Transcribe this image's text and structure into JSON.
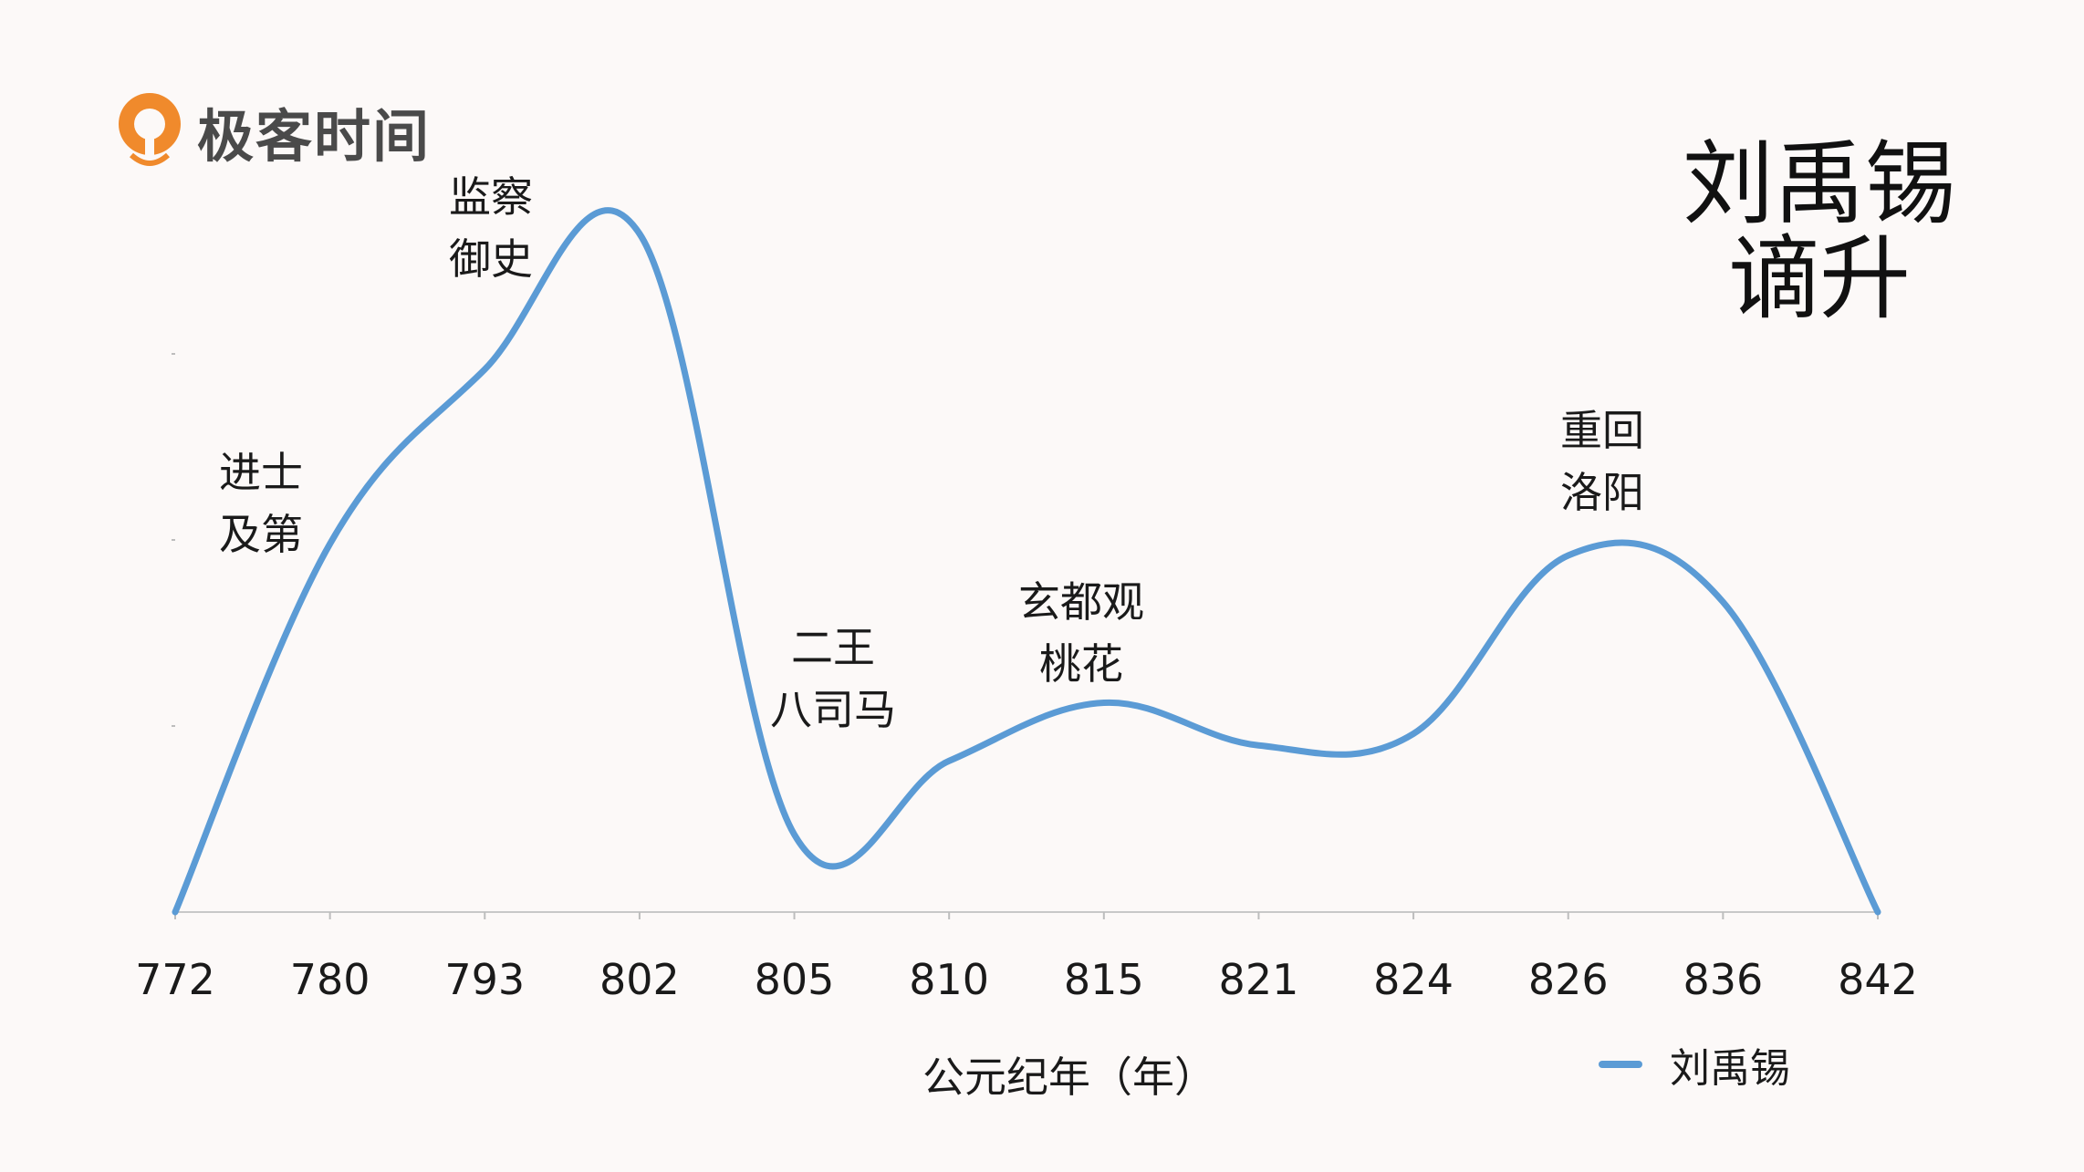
{
  "logo": {
    "text": "极客时间",
    "brand_color": "#f08a2c"
  },
  "title_lines": [
    "刘禹锡",
    "谪升"
  ],
  "annotations": [
    {
      "line1": "进士",
      "line2": "及第"
    },
    {
      "line1": "监察",
      "line2": "御史"
    },
    {
      "line1": "二王",
      "line2": "八司马"
    },
    {
      "line1": "玄都观",
      "line2": "桃花"
    },
    {
      "line1": "重回",
      "line2": "洛阳"
    }
  ],
  "chart_data": {
    "type": "line",
    "categories": [
      "772",
      "780",
      "793",
      "802",
      "805",
      "810",
      "815",
      "821",
      "824",
      "826",
      "836",
      "842"
    ],
    "series": [
      {
        "name": "刘禹锡",
        "color": "#5b9bd5",
        "values": [
          0,
          9.5,
          14,
          17.5,
          2,
          3.9,
          5.4,
          4.3,
          4.6,
          9.2,
          8,
          0
        ]
      }
    ],
    "xlabel": "公元纪年（年）",
    "ylabel": "",
    "ylim": [
      0,
      20
    ],
    "smooth": true,
    "grid": false,
    "legend_position": "bottom-right"
  }
}
